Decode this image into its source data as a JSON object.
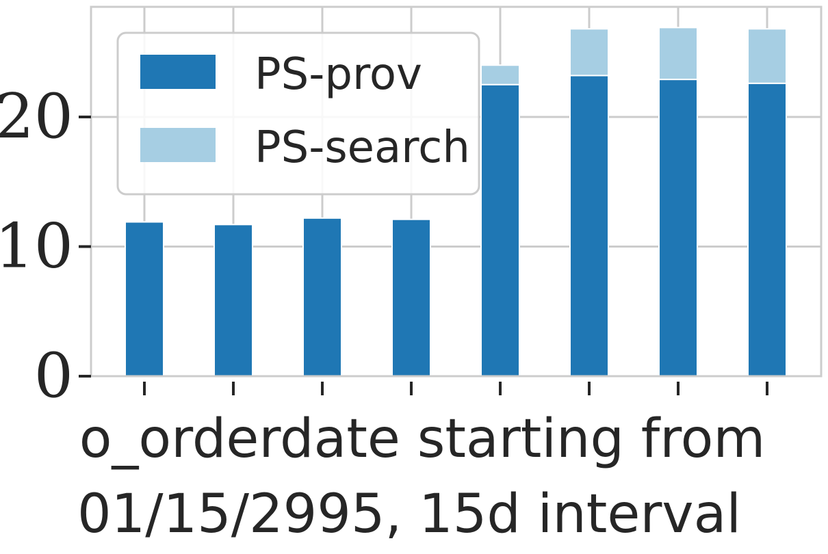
{
  "chart_data": {
    "type": "bar",
    "stacked": true,
    "categories": [
      "",
      "",
      "",
      "",
      "",
      "",
      "",
      ""
    ],
    "series": [
      {
        "name": "PS-prov",
        "values": [
          11.9,
          11.7,
          12.2,
          12.1,
          22.5,
          23.2,
          22.9,
          22.6
        ]
      },
      {
        "name": "PS-search",
        "values": [
          0,
          0,
          0,
          0,
          1.5,
          3.6,
          4.0,
          4.2
        ]
      }
    ],
    "title": "",
    "xlabel": "o_orderdate starting from 01/15/2995, 15d interval",
    "xlabel_lines": [
      "o_orderdate starting from",
      "01/15/2995, 15d interval"
    ],
    "ylabel": "",
    "ylim": [
      0,
      28.5
    ],
    "yticks": [
      0,
      10,
      20
    ],
    "grid": true,
    "legend": "top-left",
    "colors": {
      "PS-prov": "#1f77b4",
      "PS-search": "#a6cee3",
      "grid": "#cccccc",
      "axis": "#cccccc",
      "text": "#262626"
    }
  }
}
